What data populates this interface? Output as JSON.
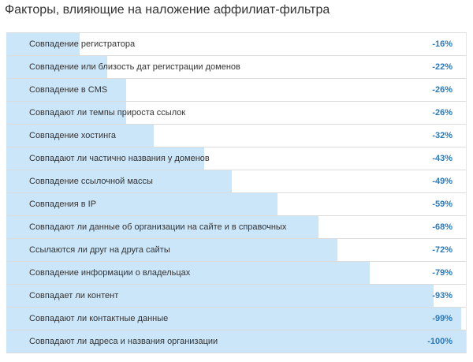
{
  "chart_data": {
    "type": "bar",
    "orientation": "horizontal",
    "title": "Факторы, влияющие на наложение аффилиат-фильтра",
    "xlabel": "",
    "ylabel": "",
    "xlim": [
      0,
      -100
    ],
    "grid": false,
    "bar_color": "#cbe6f9",
    "value_color": "#2a7ab8",
    "categories": [
      "Совпадение регистратора",
      "Совпадение или близость дат регистрации доменов",
      "Совпадение в CMS",
      "Совпадают ли темпы прироста ссылок",
      "Совпадение хостинга",
      "Совпадают ли частично названия у доменов",
      "Совпадение ссылочной массы",
      "Совпадения в IP",
      "Совпадают ли данные об организации на сайте и в справочных",
      "Ссылаются ли друг на друга сайты",
      "Совпадение информации о владельцах",
      "Совпадает ли контент",
      "Совпадают ли контактные данные",
      "Совпадают ли адреса и названия организации"
    ],
    "values": [
      -16,
      -22,
      -26,
      -26,
      -32,
      -43,
      -49,
      -59,
      -68,
      -72,
      -79,
      -93,
      -99,
      -100
    ],
    "value_labels": [
      "-16%",
      "-22%",
      "-26%",
      "-26%",
      "-32%",
      "-43%",
      "-49%",
      "-59%",
      "-68%",
      "-72%",
      "-79%",
      "-93%",
      "-99%",
      "-100%"
    ]
  }
}
